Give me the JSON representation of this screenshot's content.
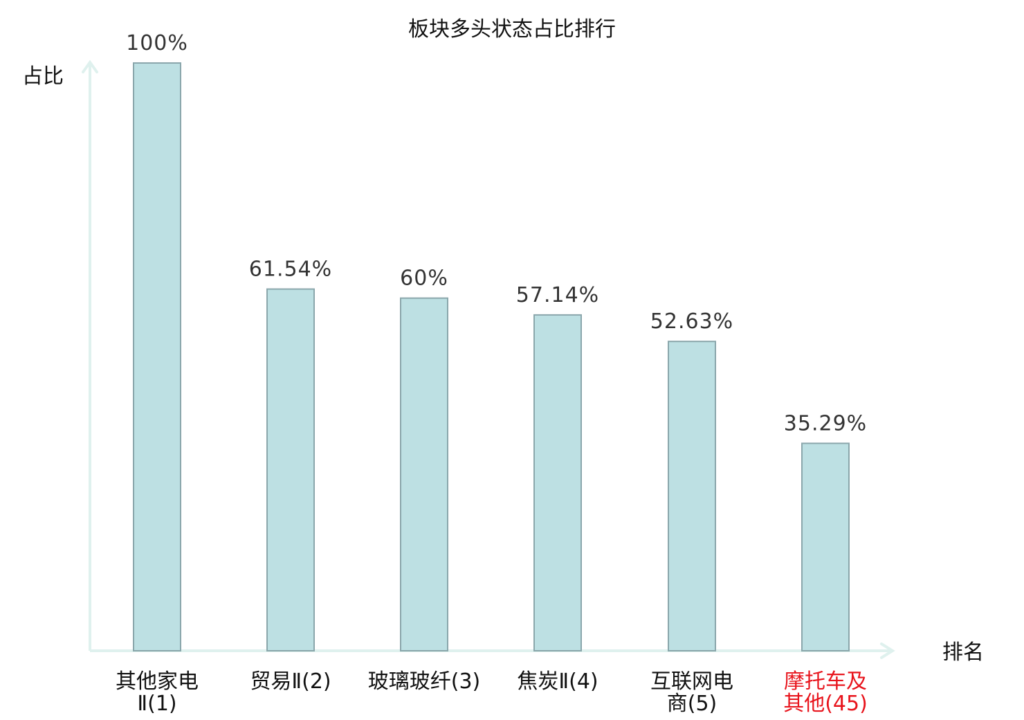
{
  "chart_data": {
    "type": "bar",
    "title": "板块多头状态占比排行",
    "ylabel": "占比",
    "xlabel": "排名",
    "ylim": [
      0,
      100
    ],
    "unit": "%",
    "categories": [
      {
        "lines": [
          "其他家电",
          "Ⅱ(1)"
        ],
        "highlight": false
      },
      {
        "lines": [
          "贸易Ⅱ(2)"
        ],
        "highlight": false
      },
      {
        "lines": [
          "玻璃玻纤(3)"
        ],
        "highlight": false
      },
      {
        "lines": [
          "焦炭Ⅱ(4)"
        ],
        "highlight": false
      },
      {
        "lines": [
          "互联网电",
          "商(5)"
        ],
        "highlight": false
      },
      {
        "lines": [
          "摩托车及",
          "其他(45)"
        ],
        "highlight": true
      }
    ],
    "values": [
      100,
      61.54,
      60,
      57.14,
      52.63,
      35.29
    ],
    "value_labels": [
      "100%",
      "61.54%",
      "60%",
      "57.14%",
      "52.63%",
      "35.29%"
    ],
    "grid": false
  },
  "colors": {
    "bar_fill": "#bde0e3",
    "bar_stroke": "#8aa6ab",
    "axis": "#dff1ee",
    "highlight_text": "#e8141c",
    "text": "#111111",
    "value_text": "#333333"
  }
}
